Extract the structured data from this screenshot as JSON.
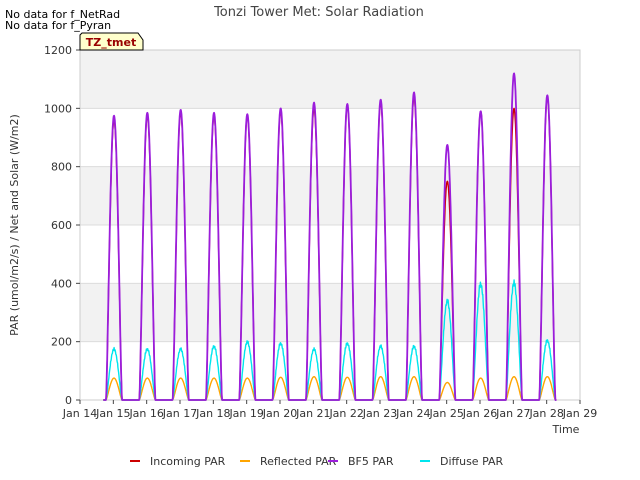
{
  "notes": [
    "No data for f_NetRad",
    "No data for f_Pyran"
  ],
  "site_badge": "TZ_tmet",
  "colors": {
    "incoming": "#cc0000",
    "reflected": "#ffa500",
    "bf5": "#9b1ddb",
    "diffuse": "#00e5ee",
    "band": "#f2f2f2",
    "grid": "#dcdcdc",
    "badge_bg": "#ffffcc",
    "badge_text": "#990000"
  },
  "chart_data": {
    "type": "line",
    "title": "Tonzi Tower Met: Solar Radiation",
    "xlabel": "Time",
    "ylabel": "PAR (umol/m2/s) / Net and Solar (W/m2)",
    "xlim": [
      14,
      29
    ],
    "ylim": [
      0,
      1200
    ],
    "yticks": [
      0,
      200,
      400,
      600,
      800,
      1000,
      1200
    ],
    "xticks": [
      14,
      15,
      16,
      17,
      18,
      19,
      20,
      21,
      22,
      23,
      24,
      25,
      26,
      27,
      28,
      29
    ],
    "xtick_labels": [
      "Jan 14",
      "Jan 15",
      "Jan 16",
      "Jan 17",
      "Jan 18",
      "Jan 19",
      "Jan 20",
      "Jan 21",
      "Jan 22",
      "Jan 23",
      "Jan 24",
      "Jan 25",
      "Jan 26",
      "Jan 27",
      "Jan 28",
      "Jan 29"
    ],
    "grid": true,
    "legend_position": "bottom",
    "days": [
      15,
      16,
      17,
      18,
      19,
      20,
      21,
      22,
      23,
      24,
      25,
      26,
      27,
      28
    ],
    "series": [
      {
        "name": "Incoming PAR",
        "key": "incoming",
        "daily_peaks": [
          960,
          975,
          985,
          975,
          975,
          990,
          1000,
          1010,
          1020,
          1040,
          750,
          990,
          1000,
          1040
        ]
      },
      {
        "name": "Reflected PAR",
        "key": "reflected",
        "daily_peaks": [
          75,
          75,
          75,
          75,
          75,
          78,
          80,
          78,
          80,
          80,
          60,
          75,
          80,
          80
        ]
      },
      {
        "name": "BF5 PAR",
        "key": "bf5",
        "daily_peaks": [
          975,
          985,
          995,
          985,
          980,
          1000,
          1020,
          1015,
          1030,
          1055,
          875,
          990,
          1120,
          1045
        ]
      },
      {
        "name": "Diffuse PAR",
        "key": "diffuse",
        "daily_peaks": [
          180,
          180,
          180,
          190,
          205,
          200,
          180,
          200,
          190,
          190,
          350,
          410,
          415,
          210
        ]
      }
    ]
  }
}
